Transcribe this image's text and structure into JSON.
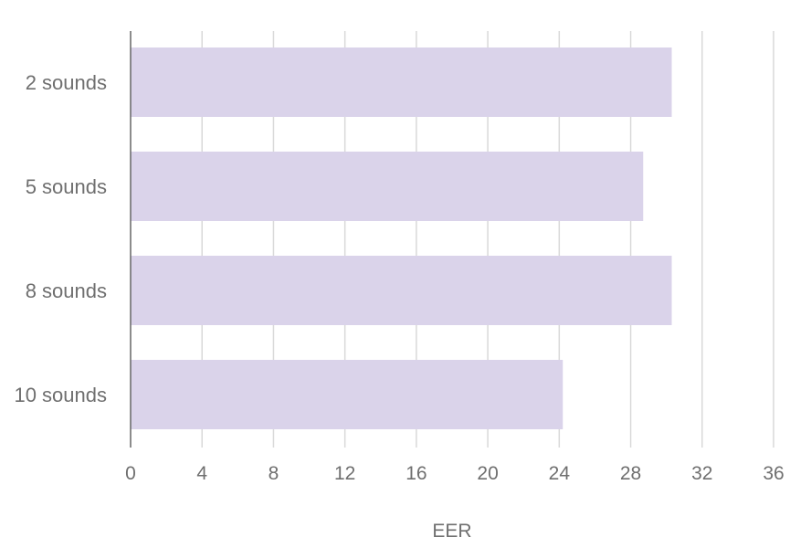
{
  "chart_data": {
    "type": "bar",
    "orientation": "horizontal",
    "categories": [
      "2 sounds",
      "5 sounds",
      "8 sounds",
      "10 sounds"
    ],
    "values": [
      30.3,
      28.7,
      30.3,
      24.2
    ],
    "xlabel": "EER",
    "ylabel": "",
    "xlim": [
      0,
      36
    ],
    "xticks": [
      "0",
      "4",
      "8",
      "12",
      "16",
      "20",
      "24",
      "28",
      "32",
      "36"
    ],
    "grid": "vertical",
    "bar_color": "#dad3ea",
    "gridline_color": "#d9d9d9",
    "axis_color": "#666666",
    "text_color": "#6f6f6f"
  }
}
